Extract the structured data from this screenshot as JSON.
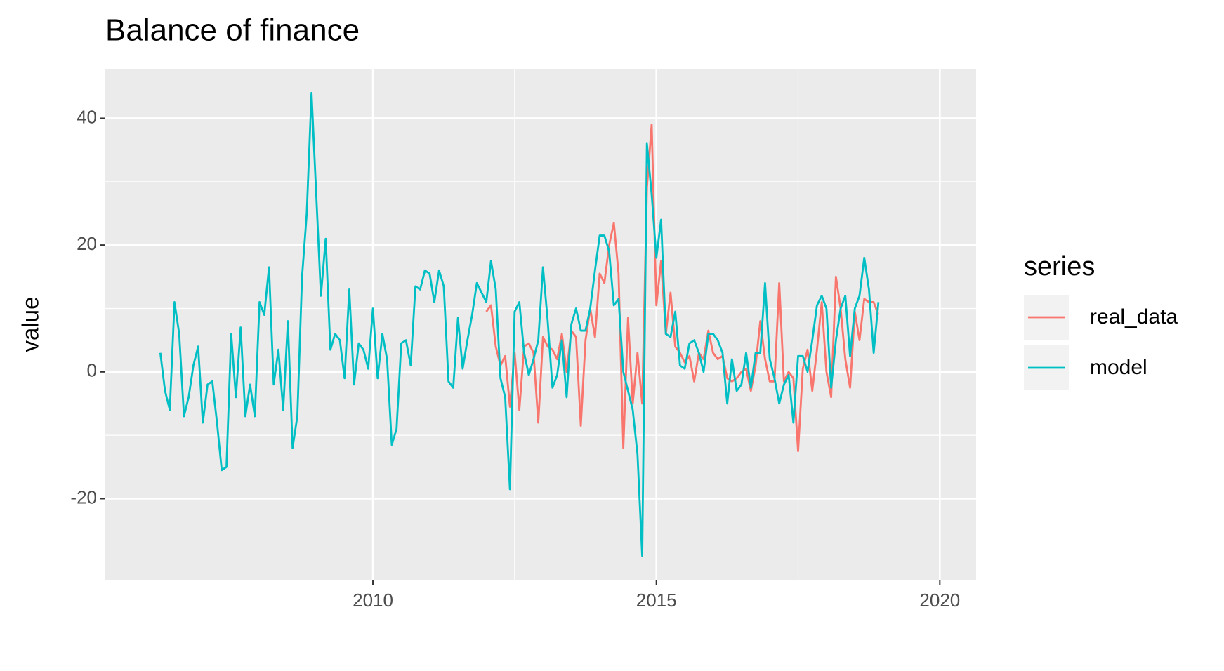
{
  "chart_data": {
    "type": "line",
    "title": "Balance of finance",
    "y_label": "value",
    "legend_title": "series",
    "grid": true,
    "legend": "right",
    "xlim": [
      2005.28,
      2020.64
    ],
    "ylim": [
      -32.9,
      47.8
    ],
    "xticks": [
      2010,
      2015,
      2020
    ],
    "yticks": [
      -20,
      0,
      20,
      40
    ],
    "x": [
      2006.25,
      2006.333,
      2006.417,
      2006.5,
      2006.583,
      2006.667,
      2006.75,
      2006.833,
      2006.917,
      2007,
      2007.083,
      2007.167,
      2007.25,
      2007.333,
      2007.417,
      2007.5,
      2007.583,
      2007.667,
      2007.75,
      2007.833,
      2007.917,
      2008,
      2008.083,
      2008.167,
      2008.25,
      2008.333,
      2008.417,
      2008.5,
      2008.583,
      2008.667,
      2008.75,
      2008.833,
      2008.917,
      2009,
      2009.083,
      2009.167,
      2009.25,
      2009.333,
      2009.417,
      2009.5,
      2009.583,
      2009.667,
      2009.75,
      2009.833,
      2009.917,
      2010,
      2010.083,
      2010.167,
      2010.25,
      2010.333,
      2010.417,
      2010.5,
      2010.583,
      2010.667,
      2010.75,
      2010.833,
      2010.917,
      2011,
      2011.083,
      2011.167,
      2011.25,
      2011.333,
      2011.417,
      2011.5,
      2011.583,
      2011.667,
      2011.75,
      2011.833,
      2011.917,
      2012,
      2012.083,
      2012.167,
      2012.25,
      2012.333,
      2012.417,
      2012.5,
      2012.583,
      2012.667,
      2012.75,
      2012.833,
      2012.917,
      2013,
      2013.083,
      2013.167,
      2013.25,
      2013.333,
      2013.417,
      2013.5,
      2013.583,
      2013.667,
      2013.75,
      2013.833,
      2013.917,
      2014,
      2014.083,
      2014.167,
      2014.25,
      2014.333,
      2014.417,
      2014.5,
      2014.583,
      2014.667,
      2014.75,
      2014.833,
      2014.917,
      2015,
      2015.083,
      2015.167,
      2015.25,
      2015.333,
      2015.417,
      2015.5,
      2015.583,
      2015.667,
      2015.75,
      2015.833,
      2015.917,
      2016,
      2016.083,
      2016.167,
      2016.25,
      2016.333,
      2016.417,
      2016.5,
      2016.583,
      2016.667,
      2016.75,
      2016.833,
      2016.917,
      2017,
      2017.083,
      2017.167,
      2017.25,
      2017.333,
      2017.417,
      2017.5,
      2017.583,
      2017.667,
      2017.75,
      2017.833,
      2017.917,
      2018,
      2018.083,
      2018.167,
      2018.25,
      2018.333,
      2018.417,
      2018.5,
      2018.583,
      2018.667,
      2018.75,
      2018.833,
      2018.917
    ],
    "series": [
      {
        "name": "real_data",
        "color": "#F8766D",
        "values": [
          null,
          null,
          null,
          null,
          null,
          null,
          null,
          null,
          null,
          null,
          null,
          null,
          null,
          null,
          null,
          null,
          null,
          null,
          null,
          null,
          null,
          null,
          null,
          null,
          null,
          null,
          null,
          null,
          null,
          null,
          null,
          null,
          null,
          null,
          null,
          null,
          null,
          null,
          null,
          null,
          null,
          null,
          null,
          null,
          null,
          null,
          null,
          null,
          null,
          null,
          null,
          null,
          null,
          null,
          null,
          null,
          null,
          null,
          null,
          null,
          null,
          null,
          null,
          null,
          null,
          null,
          null,
          null,
          null,
          9.5,
          10.5,
          4,
          1,
          2.5,
          -5.5,
          3,
          -6,
          4,
          4.5,
          3,
          -8,
          5.5,
          4,
          3.5,
          2,
          6,
          0,
          6.5,
          5.5,
          -8.5,
          5,
          10,
          5.5,
          15.5,
          14,
          20,
          23.5,
          15.5,
          -12,
          8.5,
          -5,
          3,
          -5,
          29,
          39,
          10.5,
          17.5,
          6,
          12.5,
          4,
          3,
          1.5,
          2.5,
          -1.5,
          3,
          2,
          6.5,
          3,
          2,
          2.5,
          -1,
          -1.5,
          -1,
          0,
          0.5,
          -3,
          1,
          8,
          2,
          -1.5,
          -1.5,
          14,
          -1.5,
          0,
          -1,
          -12.5,
          0.5,
          3.5,
          -3,
          3.5,
          11,
          0,
          -4,
          15,
          10,
          2,
          -2.5,
          9.5,
          5,
          11.5,
          11,
          11,
          9
        ]
      },
      {
        "name": "model",
        "color": "#00BFC4",
        "values": [
          3,
          -3,
          -6,
          11,
          6,
          -7,
          -4,
          1,
          4,
          -8,
          -2,
          -1.5,
          -8,
          -15.5,
          -15,
          6,
          -4,
          7,
          -7,
          -2,
          -7,
          11,
          9,
          16.5,
          -2,
          3.5,
          -6,
          8,
          -12,
          -7,
          15,
          25,
          44,
          28,
          12,
          21,
          3.5,
          6,
          5,
          -1,
          13,
          -2,
          4.5,
          3.5,
          0.5,
          10,
          -1,
          6,
          2,
          -11.5,
          -9,
          4.5,
          5,
          1,
          13.5,
          13,
          16,
          15.5,
          11,
          16,
          13.5,
          -1.5,
          -2.5,
          8.5,
          0.5,
          5,
          9,
          14,
          12.5,
          11,
          17.5,
          13,
          -1,
          -4,
          -18.5,
          9.5,
          11,
          3,
          -0.5,
          2,
          5,
          16.5,
          8,
          -2.5,
          -0.5,
          5,
          -4,
          7.5,
          10,
          6.5,
          6.5,
          10,
          16,
          21.5,
          21.5,
          19,
          10.5,
          11.5,
          0,
          -3,
          -6,
          -13,
          -29,
          36,
          28,
          18,
          24,
          6,
          5.5,
          9.5,
          1,
          0.5,
          4.5,
          5,
          3,
          0,
          6,
          6,
          5,
          3,
          -5,
          2,
          -3,
          -2,
          3,
          -2.5,
          3,
          3,
          14,
          2,
          -1,
          -5,
          -2,
          -0.5,
          -8,
          2.5,
          2.5,
          0,
          5,
          10.5,
          12,
          10,
          -2.5,
          5,
          10,
          12,
          2.5,
          10,
          12,
          18,
          13,
          3,
          11
        ]
      }
    ]
  }
}
